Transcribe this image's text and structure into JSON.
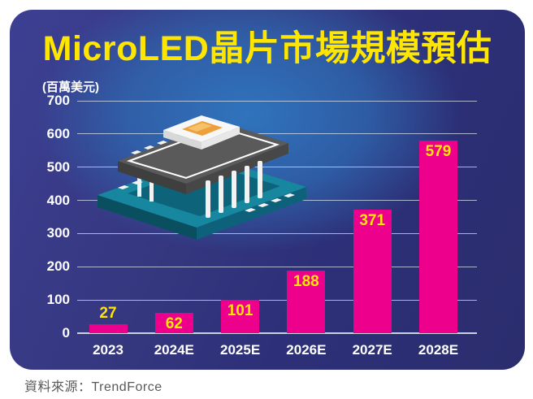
{
  "title": "MicroLED晶片市場規模預估",
  "unit_label": "(百萬美元)",
  "source": "資料來源：TrendForce",
  "colors": {
    "bar": "#EC008C",
    "title_text": "#FFE600",
    "value_label": "#FFE600",
    "axis_text": "#FFFFFF",
    "gridline": "rgba(222,229,245,0.72)",
    "card_center": "#2F74BD",
    "card_edge_left": "#3D3F93",
    "card_edge_right": "#2B2D6E",
    "source_text": "#58595B",
    "pcb_teal": "#13809B",
    "chip_gray": "#5A5A5A",
    "led_orange": "#EC9F3B"
  },
  "chart_data": {
    "type": "bar",
    "title": "MicroLED晶片市場規模預估",
    "ylabel": "(百萬美元)",
    "categories": [
      "2023",
      "2024E",
      "2025E",
      "2026E",
      "2027E",
      "2028E"
    ],
    "values": [
      27,
      62,
      101,
      188,
      371,
      579
    ],
    "ylim": [
      0,
      700
    ],
    "yticks": [
      0,
      100,
      200,
      300,
      400,
      500,
      600,
      700
    ],
    "grid": true,
    "legend": false,
    "bar_color": "#EC008C",
    "value_labels_shown": true
  },
  "illustration": {
    "name": "microled-chip-stack-illustration"
  }
}
